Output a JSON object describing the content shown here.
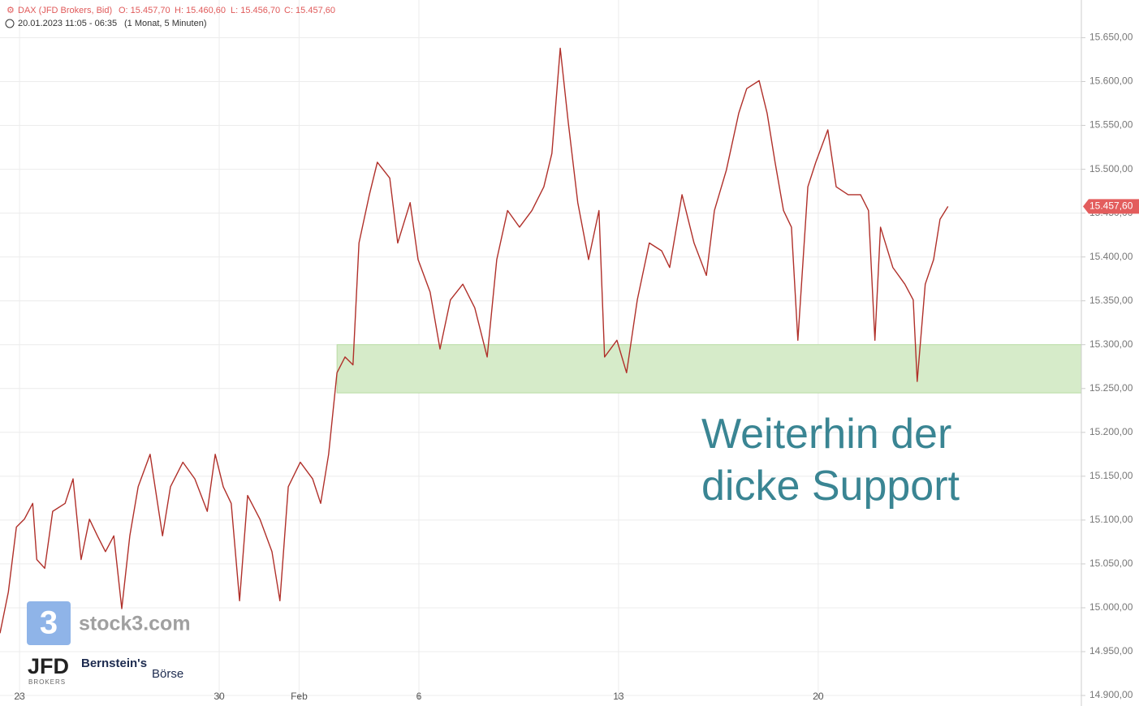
{
  "chart_data": {
    "type": "line",
    "header": {
      "instrument": "DAX (JFD Brokers, Bid)",
      "open": "O: 15.457,70",
      "high": "H: 15.460,60",
      "low": "L: 15.456,70",
      "close": "C: 15.457,60",
      "time_range": "20.01.2023 11:05 - 06:35",
      "period": "(1 Monat, 5 Minuten)"
    },
    "annotation": [
      "Weiterhin der",
      "dicke Support"
    ],
    "logos": {
      "stock3": "stock3.com",
      "stock3_icon": "3",
      "jfd": "JFD",
      "jfd_sub": "BROKERS",
      "bernstein": "Bernstein's",
      "boerse": "Börse"
    },
    "x": [
      -0.49,
      -0.28,
      -0.08,
      0.12,
      0.33,
      0.43,
      0.63,
      0.83,
      1.14,
      1.34,
      1.54,
      1.75,
      1.95,
      2.15,
      2.36,
      2.56,
      2.76,
      2.97,
      3.27,
      3.58,
      3.78,
      4.09,
      4.39,
      4.7,
      4.9,
      5.1,
      5.3,
      5.51,
      5.71,
      6.02,
      6.32,
      6.52,
      6.73,
      7.03,
      7.34,
      7.54,
      7.74,
      7.95,
      8.15,
      8.35,
      8.5,
      8.76,
      8.96,
      9.27,
      9.47,
      9.78,
      9.98,
      10.28,
      10.53,
      10.79,
      11.1,
      11.4,
      11.71,
      11.95,
      12.22,
      12.52,
      12.83,
      13.13,
      13.33,
      13.54,
      13.74,
      13.98,
      14.25,
      14.51,
      14.65,
      14.96,
      15.2,
      15.47,
      15.77,
      16.08,
      16.28,
      16.59,
      16.89,
      17.2,
      17.4,
      17.7,
      18.01,
      18.21,
      18.52,
      18.72,
      18.92,
      19.13,
      19.33,
      19.49,
      19.74,
      19.94,
      20.24,
      20.45,
      20.75,
      21.06,
      21.26,
      21.42,
      21.56,
      21.87,
      22.17,
      22.38,
      22.48,
      22.68,
      22.89,
      23.05,
      23.25
    ],
    "series": [
      {
        "name": "DAX",
        "color": "#b0302a",
        "values": [
          14971,
          15018,
          15092,
          15101,
          15119,
          15055,
          15045,
          15110,
          15119,
          15147,
          15055,
          15101,
          15082,
          15064,
          15082,
          14999,
          15082,
          15138,
          15175,
          15082,
          15138,
          15166,
          15147,
          15110,
          15175,
          15138,
          15119,
          15008,
          15128,
          15101,
          15064,
          15008,
          15138,
          15166,
          15147,
          15119,
          15175,
          15268,
          15286,
          15277,
          15416,
          15471,
          15508,
          15490,
          15416,
          15462,
          15397,
          15360,
          15295,
          15351,
          15369,
          15342,
          15286,
          15397,
          15453,
          15434,
          15453,
          15480,
          15518,
          15638,
          15554,
          15462,
          15397,
          15453,
          15286,
          15305,
          15268,
          15351,
          15416,
          15407,
          15388,
          15471,
          15416,
          15379,
          15453,
          15499,
          15564,
          15592,
          15601,
          15564,
          15508,
          15453,
          15434,
          15305,
          15480,
          15508,
          15545,
          15480,
          15471,
          15471,
          15453,
          15305,
          15434,
          15388,
          15369,
          15351,
          15258,
          15369,
          15397,
          15443,
          15457.6
        ]
      }
    ],
    "xlim": [
      -0.49,
      26.59
    ],
    "xticks": [
      {
        "value": 0,
        "label": "23"
      },
      {
        "value": 5,
        "label": "30"
      },
      {
        "value": 7,
        "label": "Feb"
      },
      {
        "value": 10,
        "label": "6"
      },
      {
        "value": 15,
        "label": "13"
      },
      {
        "value": 20,
        "label": "20"
      }
    ],
    "ylim": [
      14888,
      15693
    ],
    "yticks": [
      {
        "value": 14900,
        "label": "14.900,00"
      },
      {
        "value": 14950,
        "label": "14.950,00"
      },
      {
        "value": 15000,
        "label": "15.000,00"
      },
      {
        "value": 15050,
        "label": "15.050,00"
      },
      {
        "value": 15100,
        "label": "15.100,00"
      },
      {
        "value": 15150,
        "label": "15.150,00"
      },
      {
        "value": 15200,
        "label": "15.200,00"
      },
      {
        "value": 15250,
        "label": "15.250,00"
      },
      {
        "value": 15300,
        "label": "15.300,00"
      },
      {
        "value": 15350,
        "label": "15.350,00"
      },
      {
        "value": 15400,
        "label": "15.400,00"
      },
      {
        "value": 15450,
        "label": "15.450,00"
      },
      {
        "value": 15500,
        "label": "15.500,00"
      },
      {
        "value": 15550,
        "label": "15.550,00"
      },
      {
        "value": 15600,
        "label": "15.600,00"
      },
      {
        "value": 15650,
        "label": "15.650,00"
      }
    ],
    "support_zone": {
      "from": 15245,
      "to": 15300,
      "x_start": 7.95,
      "color": "#d6ebc9"
    },
    "last_price": {
      "value": 15457.6,
      "label": "15.457,60",
      "color": "#e35d5d"
    },
    "grid": true
  }
}
